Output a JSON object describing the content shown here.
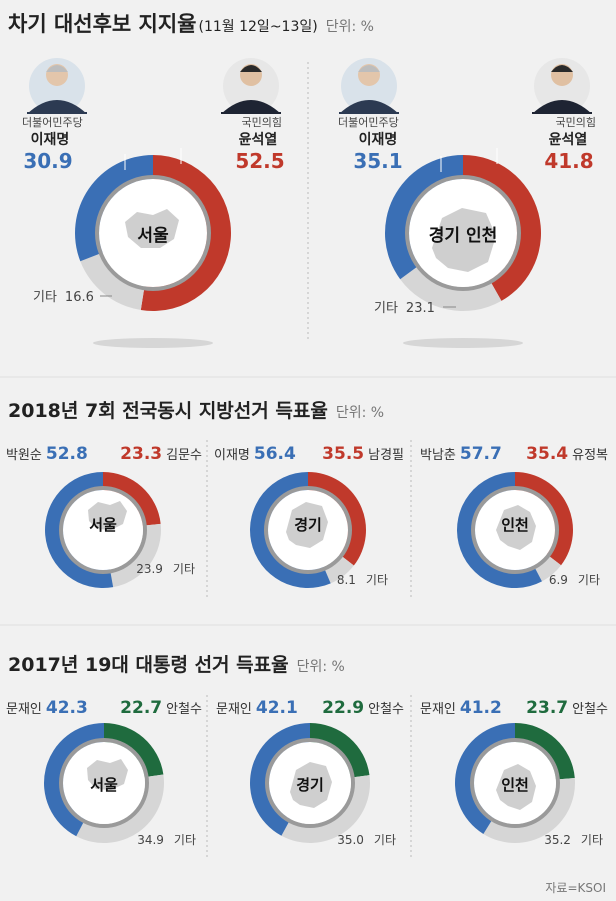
{
  "colors": {
    "blue": "#3a6fb5",
    "red": "#c0392b",
    "green": "#1f6b3e",
    "gray": "#d6d6d6",
    "inner_ring": "#9a9a9a",
    "region": "#cfcfcf"
  },
  "source": "자료=KSOI",
  "sections": [
    {
      "title": "차기 대선후보 지지율",
      "date": "(11월 12일~13일)",
      "unit": "단위: %",
      "chart_data": [
        {
          "type": "pie",
          "title": "서울",
          "series": [
            {
              "name": "이재명",
              "party": "더불어민주당",
              "value": 30.9,
              "color": "blue"
            },
            {
              "name": "윤석열",
              "party": "국민의힘",
              "value": 52.5,
              "color": "red"
            },
            {
              "name": "기타",
              "value": 16.6,
              "color": "gray"
            }
          ]
        },
        {
          "type": "pie",
          "title": "경기 인천",
          "series": [
            {
              "name": "이재명",
              "party": "더불어민주당",
              "value": 35.1,
              "color": "blue"
            },
            {
              "name": "윤석열",
              "party": "국민의힘",
              "value": 41.8,
              "color": "red"
            },
            {
              "name": "기타",
              "value": 23.1,
              "color": "gray"
            }
          ]
        }
      ]
    },
    {
      "title": "2018년 7회 전국동시 지방선거 득표율",
      "unit": "단위: %",
      "chart_data": [
        {
          "type": "pie",
          "title": "서울",
          "series": [
            {
              "name": "박원순",
              "value": 52.8,
              "color": "blue"
            },
            {
              "name": "김문수",
              "value": 23.3,
              "color": "red"
            },
            {
              "name": "기타",
              "value": 23.9,
              "color": "gray"
            }
          ]
        },
        {
          "type": "pie",
          "title": "경기",
          "series": [
            {
              "name": "이재명",
              "value": 56.4,
              "color": "blue"
            },
            {
              "name": "남경필",
              "value": 35.5,
              "color": "red"
            },
            {
              "name": "기타",
              "value": 8.1,
              "color": "gray"
            }
          ]
        },
        {
          "type": "pie",
          "title": "인천",
          "series": [
            {
              "name": "박남춘",
              "value": 57.7,
              "color": "blue"
            },
            {
              "name": "유정복",
              "value": 35.4,
              "color": "red"
            },
            {
              "name": "기타",
              "value": 6.9,
              "color": "gray"
            }
          ]
        }
      ]
    },
    {
      "title": "2017년 19대 대통령 선거 득표율",
      "unit": "단위: %",
      "chart_data": [
        {
          "type": "pie",
          "title": "서울",
          "series": [
            {
              "name": "문재인",
              "value": 42.3,
              "color": "blue"
            },
            {
              "name": "안철수",
              "value": 22.7,
              "color": "green"
            },
            {
              "name": "기타",
              "value": 34.9,
              "color": "gray"
            }
          ]
        },
        {
          "type": "pie",
          "title": "경기",
          "series": [
            {
              "name": "문재인",
              "value": 42.1,
              "color": "blue"
            },
            {
              "name": "안철수",
              "value": 22.9,
              "color": "green"
            },
            {
              "name": "기타",
              "value": 35.0,
              "color": "gray"
            }
          ]
        },
        {
          "type": "pie",
          "title": "인천",
          "series": [
            {
              "name": "문재인",
              "value": 41.2,
              "color": "blue"
            },
            {
              "name": "안철수",
              "value": 23.7,
              "color": "green"
            },
            {
              "name": "기타",
              "value": 35.2,
              "color": "gray"
            }
          ]
        }
      ]
    }
  ]
}
